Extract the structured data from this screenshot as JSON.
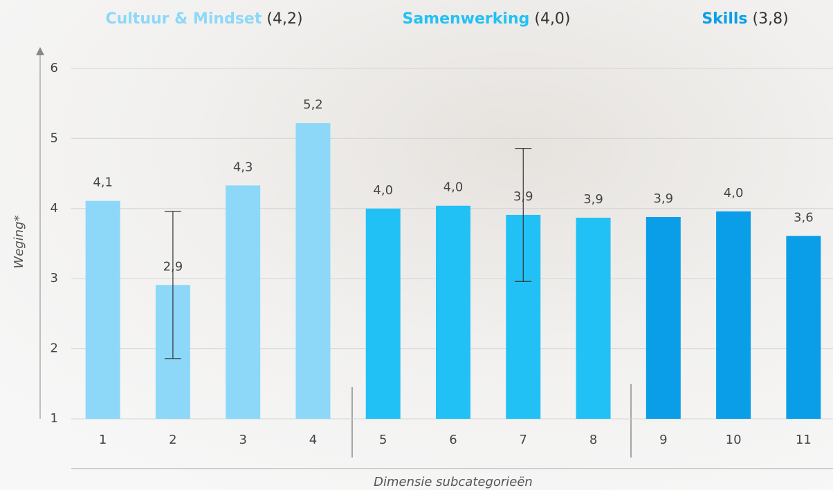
{
  "chart_data": {
    "type": "bar",
    "groups": [
      {
        "name": "Cultuur & Mindset",
        "score": "(4,2)",
        "color": "#8dd8f8"
      },
      {
        "name": "Samenwerking",
        "score": "(4,0)",
        "color": "#22c1f5"
      },
      {
        "name": "Skills",
        "score": "(3,8)",
        "color": "#0a9ee8"
      }
    ],
    "categories": [
      "1",
      "2",
      "3",
      "4",
      "5",
      "6",
      "7",
      "8",
      "9",
      "10",
      "11"
    ],
    "group_index": [
      0,
      0,
      0,
      0,
      1,
      1,
      1,
      1,
      2,
      2,
      2
    ],
    "values": [
      4.11,
      2.91,
      4.33,
      5.22,
      4.0,
      4.04,
      3.91,
      3.87,
      3.88,
      3.96,
      3.61
    ],
    "value_labels": [
      "4,1",
      "2,9",
      "4,3",
      "5,2",
      "4,0",
      "4,0",
      "3,9",
      "3,9",
      "3,9",
      "4,0",
      "3,6"
    ],
    "errors": [
      null,
      1.05,
      null,
      null,
      null,
      null,
      0.95,
      null,
      null,
      null,
      null
    ],
    "ylabel": "Weging*",
    "xlabel": "Dimensie subcategorieën",
    "ylim": [
      1,
      6
    ],
    "yticks": [
      1,
      2,
      3,
      4,
      5,
      6
    ],
    "grid": true
  }
}
